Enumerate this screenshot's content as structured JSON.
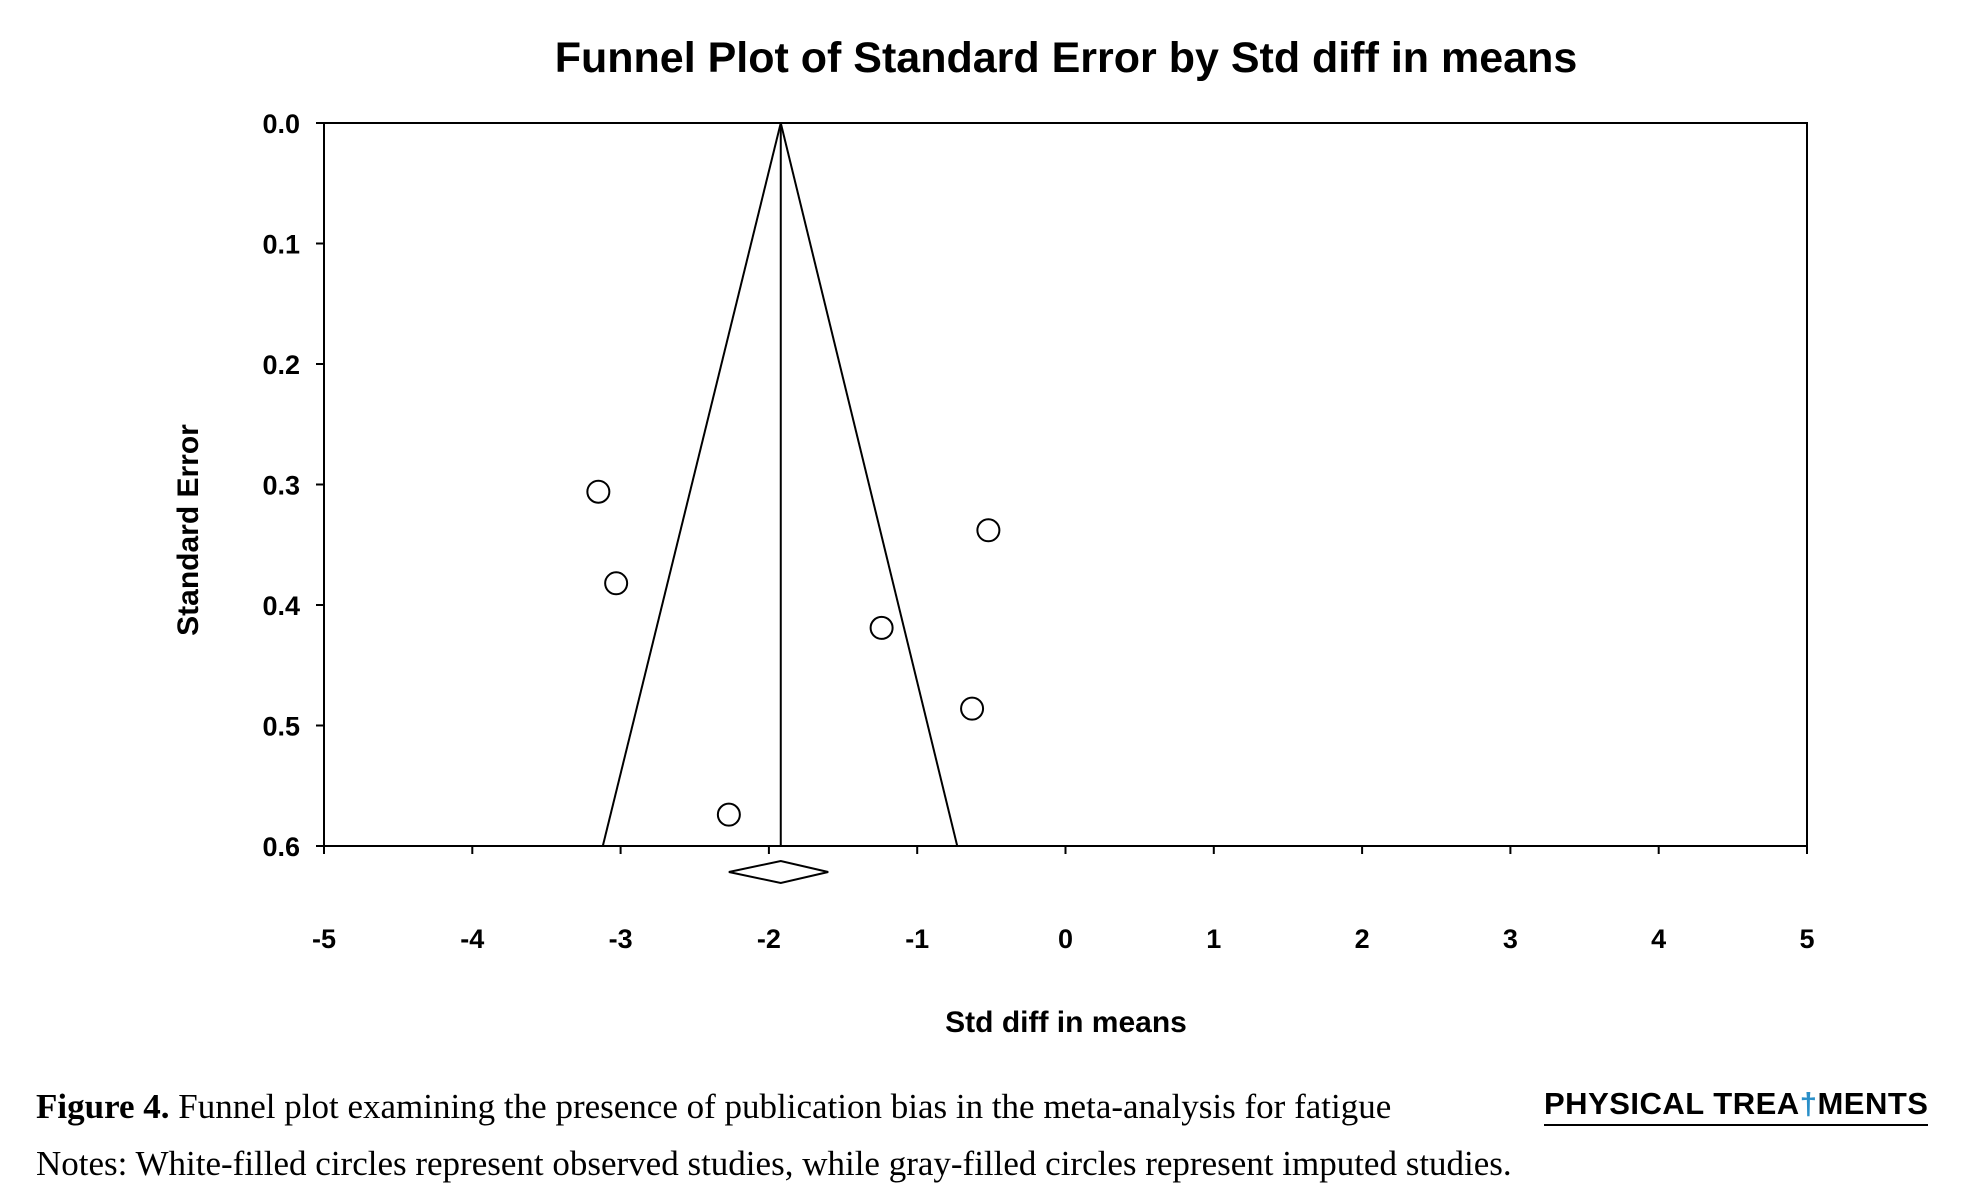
{
  "chart_data": {
    "type": "scatter",
    "title": "Funnel Plot of Standard Error by Std diff in means",
    "xlabel": "Std diff in means",
    "ylabel": "Standard Error",
    "xlim": [
      -5,
      5
    ],
    "ylim": [
      0.0,
      0.6
    ],
    "y_inverted": true,
    "x_ticks": [
      "-5",
      "-4",
      "-3",
      "-2",
      "-1",
      "0",
      "1",
      "2",
      "3",
      "4",
      "5"
    ],
    "y_ticks": [
      "0.0",
      "0.1",
      "0.2",
      "0.3",
      "0.4",
      "0.5",
      "0.6"
    ],
    "grid": false,
    "points": [
      {
        "x": -3.15,
        "y": 0.306
      },
      {
        "x": -3.03,
        "y": 0.382
      },
      {
        "x": -0.52,
        "y": 0.338
      },
      {
        "x": -1.24,
        "y": 0.419
      },
      {
        "x": -0.63,
        "y": 0.486
      },
      {
        "x": -2.27,
        "y": 0.574
      }
    ],
    "funnel": {
      "center_x": -1.92,
      "apex_y": 0.0,
      "base_y": 0.6,
      "base_left_x": -3.12,
      "base_right_x": -0.73
    },
    "summary_diamond": {
      "center_x": -1.92,
      "lower_x": -2.27,
      "upper_x": -1.6
    },
    "colors": {
      "axis": "#000000",
      "marker_fill": "#ffffff",
      "marker_stroke": "#000000"
    }
  },
  "caption": {
    "label": "Figure 4.",
    "text": " Funnel plot examining the presence of publication bias in the meta-analysis for fatigue",
    "notes": "Notes: White-filled circles represent observed studies, while gray-filled circles represent imputed studies."
  },
  "journal": {
    "name_part1": "PHYSICAL TREA",
    "name_accent": "†",
    "name_part2": "MENTS"
  }
}
